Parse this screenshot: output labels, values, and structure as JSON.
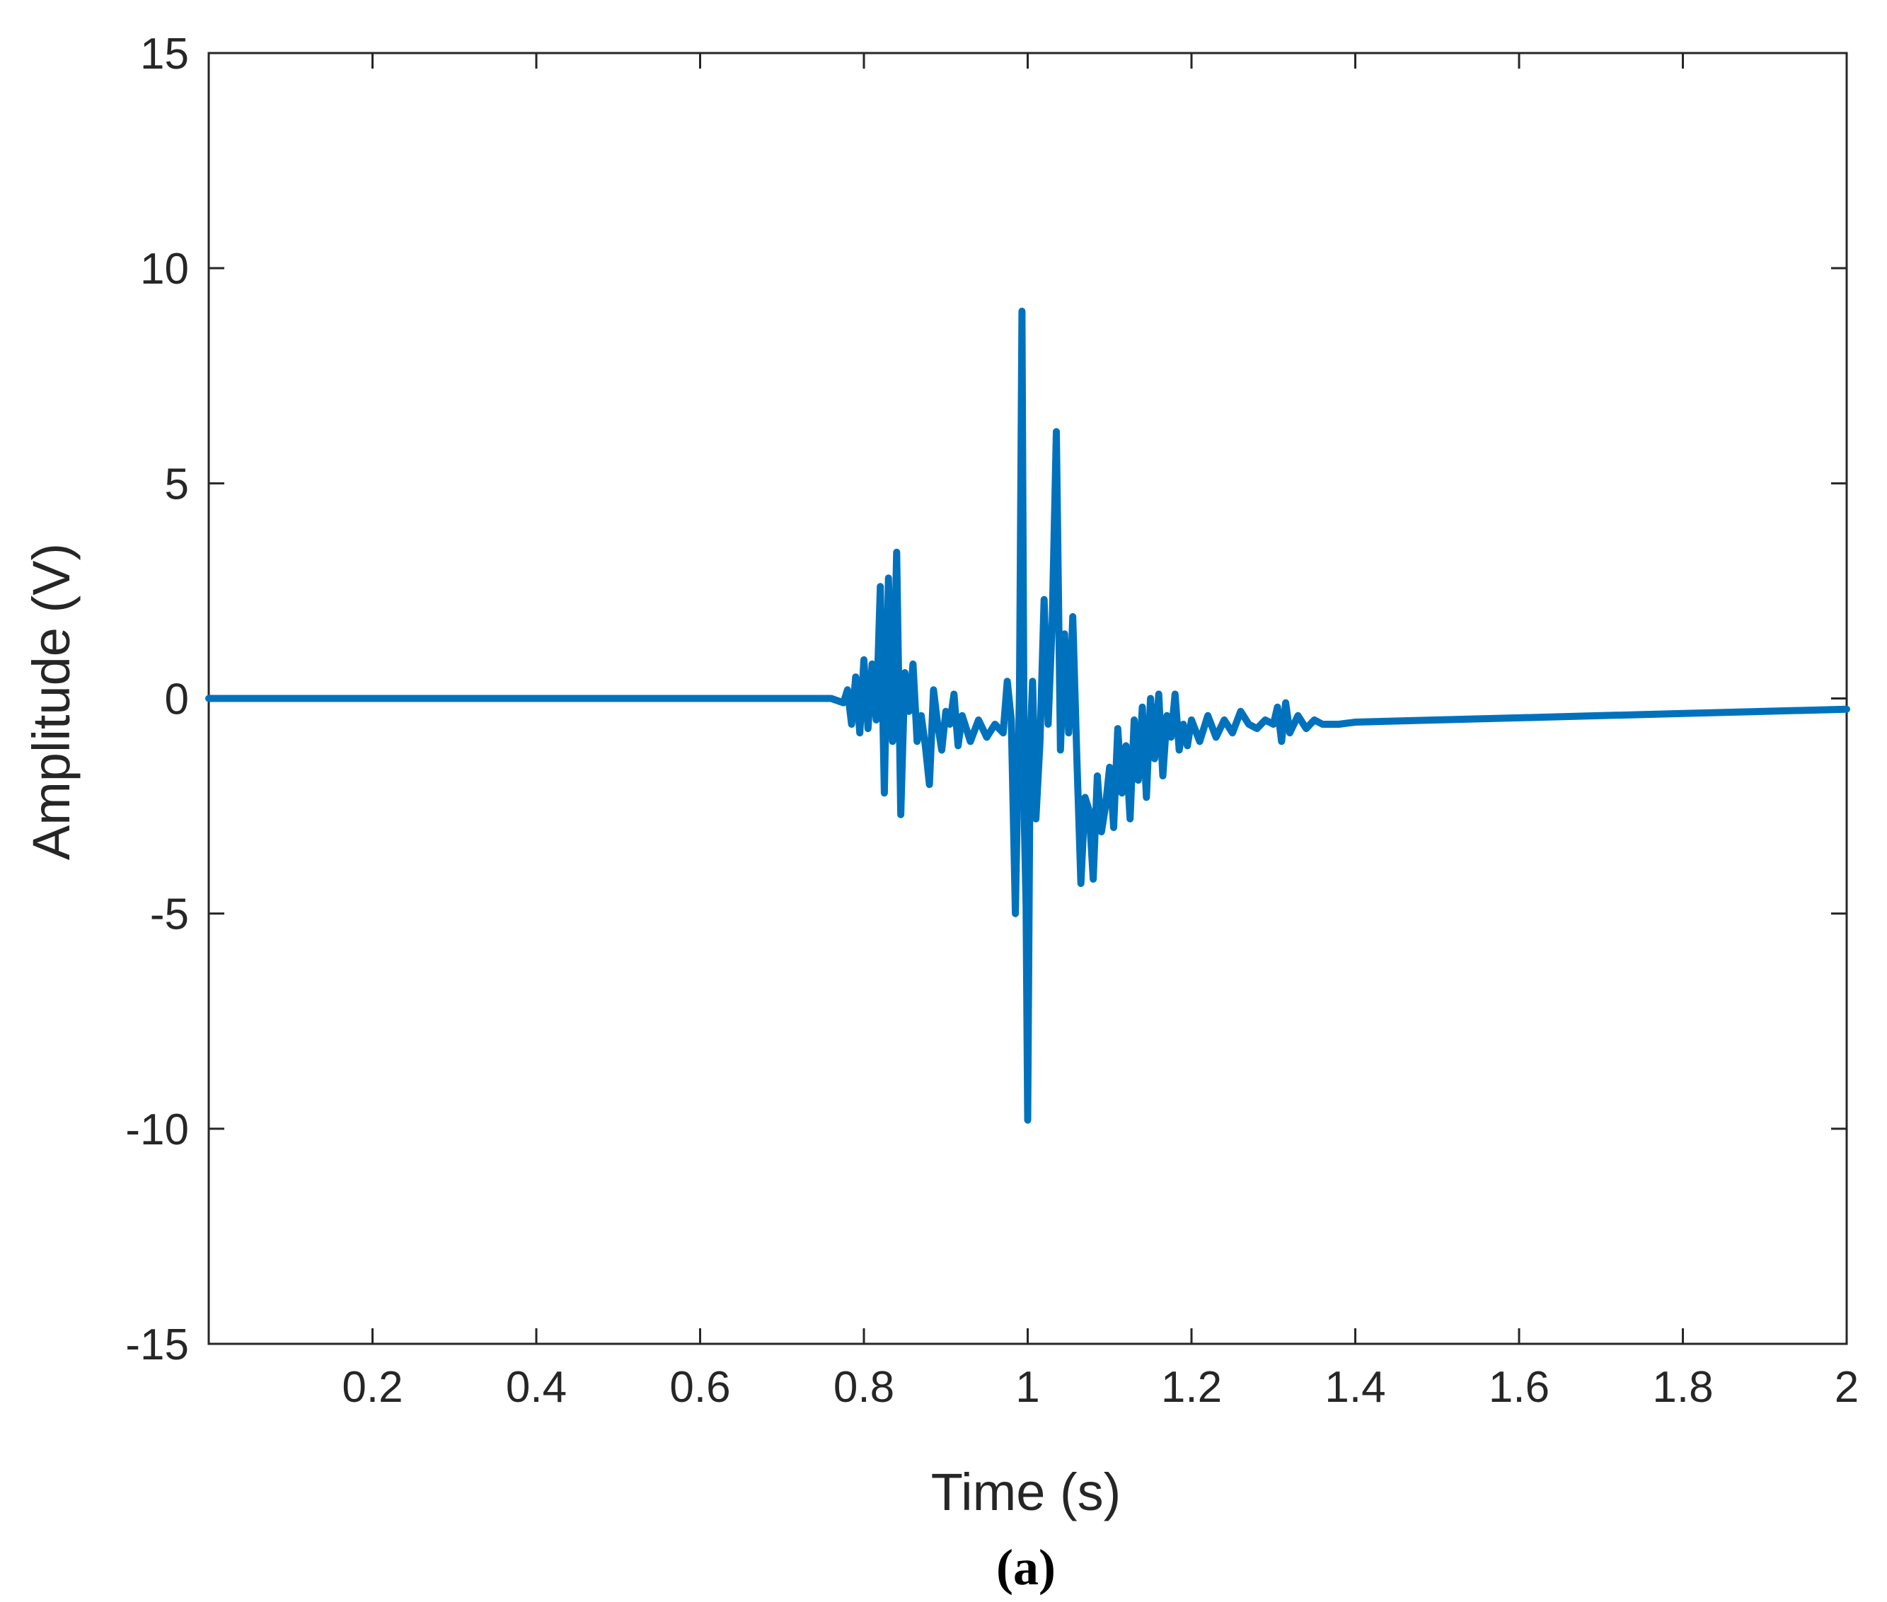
{
  "chart_data": {
    "type": "line",
    "title": "",
    "xlabel": "Time (s)",
    "ylabel": "Amplitude (V)",
    "caption": "(a)",
    "xlim": [
      0,
      2
    ],
    "ylim": [
      -15,
      15
    ],
    "xticks": [
      0.2,
      0.4,
      0.6,
      0.8,
      1,
      1.2,
      1.4,
      1.6,
      1.8,
      2
    ],
    "xtick_labels": [
      "0.2",
      "0.4",
      "0.6",
      "0.8",
      "1",
      "1.2",
      "1.4",
      "1.6",
      "1.8",
      "2"
    ],
    "yticks": [
      15,
      10,
      5,
      0,
      -5,
      -10,
      -15
    ],
    "ytick_labels": [
      "15",
      "10",
      "5",
      "0",
      "-5",
      "-10",
      "-15"
    ],
    "grid": false,
    "legend": "none",
    "line_color": "#0072BD",
    "series": [
      {
        "x": [
          0.0,
          0.1,
          0.2,
          0.3,
          0.4,
          0.5,
          0.6,
          0.7,
          0.76,
          0.775,
          0.78,
          0.785,
          0.79,
          0.795,
          0.8,
          0.805,
          0.81,
          0.815,
          0.82,
          0.825,
          0.83,
          0.835,
          0.84,
          0.845,
          0.85,
          0.855,
          0.86,
          0.865,
          0.87,
          0.875,
          0.88,
          0.885,
          0.89,
          0.895,
          0.9,
          0.905,
          0.91,
          0.915,
          0.92,
          0.93,
          0.94,
          0.95,
          0.96,
          0.97,
          0.975,
          0.98,
          0.985,
          0.99,
          0.993,
          0.996,
          0.998,
          1.0,
          1.003,
          1.006,
          1.01,
          1.015,
          1.02,
          1.025,
          1.03,
          1.035,
          1.04,
          1.045,
          1.05,
          1.055,
          1.06,
          1.065,
          1.07,
          1.075,
          1.08,
          1.085,
          1.09,
          1.095,
          1.1,
          1.105,
          1.11,
          1.115,
          1.12,
          1.125,
          1.13,
          1.135,
          1.14,
          1.145,
          1.15,
          1.155,
          1.16,
          1.165,
          1.17,
          1.175,
          1.18,
          1.185,
          1.19,
          1.195,
          1.2,
          1.21,
          1.22,
          1.23,
          1.24,
          1.25,
          1.26,
          1.27,
          1.28,
          1.29,
          1.3,
          1.305,
          1.31,
          1.315,
          1.32,
          1.33,
          1.34,
          1.35,
          1.36,
          1.38,
          1.4,
          1.5,
          1.6,
          1.7,
          1.8,
          1.9,
          2.0
        ],
        "y": [
          0.0,
          0.0,
          0.0,
          0.0,
          0.0,
          0.0,
          0.0,
          0.0,
          0.0,
          -0.1,
          0.2,
          -0.6,
          0.5,
          -0.8,
          0.9,
          -0.7,
          0.8,
          -0.5,
          2.6,
          -2.2,
          2.8,
          -1.0,
          3.4,
          -2.7,
          0.6,
          -0.3,
          0.8,
          -1.0,
          -0.4,
          -1.1,
          -2.0,
          0.2,
          -0.6,
          -1.2,
          -0.3,
          -0.6,
          0.1,
          -1.1,
          -0.4,
          -1.0,
          -0.5,
          -0.9,
          -0.6,
          -0.8,
          0.4,
          -0.5,
          -5.0,
          0.2,
          9.0,
          -3.0,
          -4.8,
          -9.8,
          -1.0,
          0.4,
          -2.8,
          -1.0,
          2.3,
          -0.6,
          1.8,
          6.2,
          -1.2,
          1.5,
          -0.8,
          1.9,
          -1.4,
          -4.3,
          -2.3,
          -2.6,
          -4.2,
          -1.8,
          -3.1,
          -2.5,
          -1.6,
          -3.0,
          -0.7,
          -2.2,
          -1.1,
          -2.8,
          -0.5,
          -1.9,
          -0.2,
          -2.3,
          0.0,
          -1.4,
          0.1,
          -1.8,
          -0.4,
          -0.9,
          0.1,
          -1.2,
          -0.6,
          -1.1,
          -0.5,
          -1.0,
          -0.4,
          -0.9,
          -0.5,
          -0.8,
          -0.3,
          -0.6,
          -0.7,
          -0.5,
          -0.6,
          -0.2,
          -1.0,
          -0.1,
          -0.8,
          -0.4,
          -0.7,
          -0.5,
          -0.6,
          -0.6,
          -0.55,
          -0.5,
          -0.45,
          -0.4,
          -0.35,
          -0.3,
          -0.25
        ]
      }
    ]
  }
}
